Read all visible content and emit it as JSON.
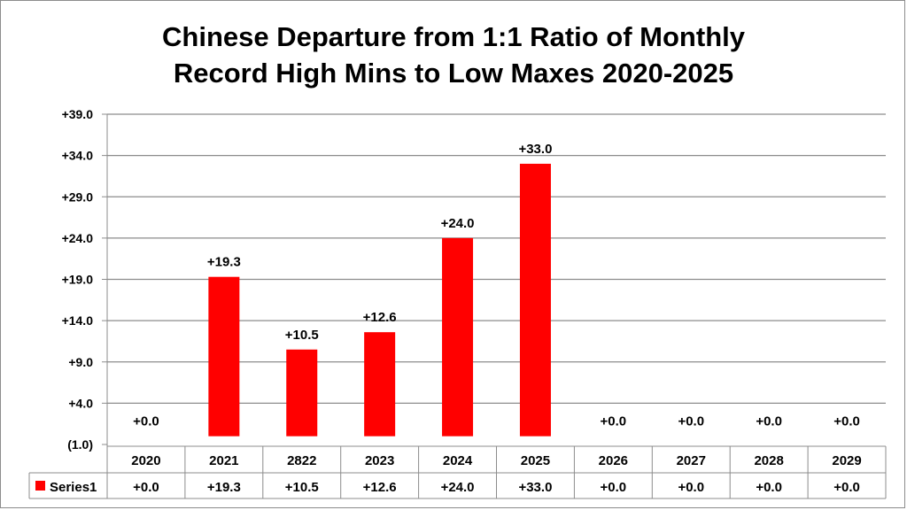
{
  "chart_data": {
    "type": "bar",
    "title_lines": [
      "Chinese  Departure from 1:1 Ratio of Monthly",
      "Record High Mins to Low Maxes 2020-2025"
    ],
    "categories": [
      "2020",
      "2021",
      "2822",
      "2023",
      "2024",
      "2025",
      "2026",
      "2027",
      "2028",
      "2029"
    ],
    "series": [
      {
        "name": "Series1",
        "color": "#ff0000",
        "values": [
          0.0,
          19.3,
          10.5,
          12.6,
          24.0,
          33.0,
          0.0,
          0.0,
          0.0,
          0.0
        ],
        "labels": [
          "+0.0",
          "+19.3",
          "+10.5",
          "+12.6",
          "+24.0",
          "+33.0",
          "+0.0",
          "+0.0",
          "+0.0",
          "+0.0"
        ]
      }
    ],
    "y_ticks": [
      {
        "value": -1.0,
        "label": "(1.0)",
        "color": "#0000cc"
      },
      {
        "value": 4.0,
        "label": "+4.0",
        "color": "#000000"
      },
      {
        "value": 9.0,
        "label": "+9.0",
        "color": "#000000"
      },
      {
        "value": 14.0,
        "label": "+14.0",
        "color": "#000000"
      },
      {
        "value": 19.0,
        "label": "+19.0",
        "color": "#000000"
      },
      {
        "value": 24.0,
        "label": "+24.0",
        "color": "#000000"
      },
      {
        "value": 29.0,
        "label": "+29.0",
        "color": "#000000"
      },
      {
        "value": 34.0,
        "label": "+34.0",
        "color": "#000000"
      },
      {
        "value": 39.0,
        "label": "+39.0",
        "color": "#000000"
      }
    ],
    "ylim": [
      -1.0,
      39.0
    ],
    "grid": true,
    "legend": "data-table"
  }
}
